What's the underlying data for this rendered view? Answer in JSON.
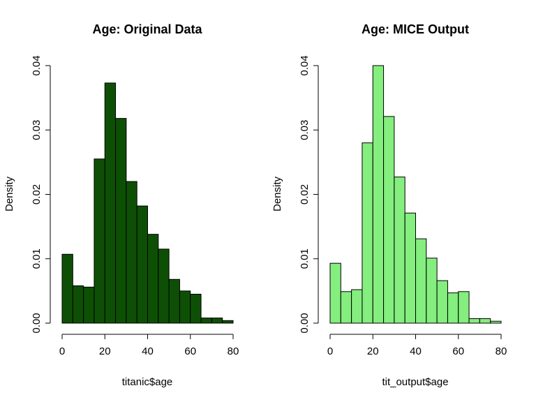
{
  "chart_data": [
    {
      "type": "bar",
      "title": "Age: Original Data",
      "xlabel": "titanic$age",
      "ylabel": "Density",
      "bar_color": "#0d5005",
      "bin_width": 5,
      "xlim": [
        0,
        80
      ],
      "ylim": [
        0,
        0.04
      ],
      "x_ticks": [
        "0",
        "20",
        "40",
        "60",
        "80"
      ],
      "y_ticks": [
        "0.00",
        "0.01",
        "0.02",
        "0.03",
        "0.04"
      ],
      "bins": [
        {
          "range": [
            0,
            5
          ],
          "value": 0.0107
        },
        {
          "range": [
            5,
            10
          ],
          "value": 0.0058
        },
        {
          "range": [
            10,
            15
          ],
          "value": 0.0056
        },
        {
          "range": [
            15,
            20
          ],
          "value": 0.0255
        },
        {
          "range": [
            20,
            25
          ],
          "value": 0.0373
        },
        {
          "range": [
            25,
            30
          ],
          "value": 0.0318
        },
        {
          "range": [
            30,
            35
          ],
          "value": 0.022
        },
        {
          "range": [
            35,
            40
          ],
          "value": 0.0182
        },
        {
          "range": [
            40,
            45
          ],
          "value": 0.0138
        },
        {
          "range": [
            45,
            50
          ],
          "value": 0.0115
        },
        {
          "range": [
            50,
            55
          ],
          "value": 0.0068
        },
        {
          "range": [
            55,
            60
          ],
          "value": 0.005
        },
        {
          "range": [
            60,
            65
          ],
          "value": 0.0045
        },
        {
          "range": [
            65,
            70
          ],
          "value": 0.0008
        },
        {
          "range": [
            70,
            75
          ],
          "value": 0.0008
        },
        {
          "range": [
            75,
            80
          ],
          "value": 0.0004
        }
      ]
    },
    {
      "type": "bar",
      "title": "Age: MICE Output",
      "xlabel": "tit_output$age",
      "ylabel": "Density",
      "bar_color": "#84ee7e",
      "bin_width": 5,
      "xlim": [
        0,
        80
      ],
      "ylim": [
        0,
        0.04
      ],
      "x_ticks": [
        "0",
        "20",
        "40",
        "60",
        "80"
      ],
      "y_ticks": [
        "0.00",
        "0.01",
        "0.02",
        "0.03",
        "0.04"
      ],
      "bins": [
        {
          "range": [
            0,
            5
          ],
          "value": 0.0093
        },
        {
          "range": [
            5,
            10
          ],
          "value": 0.0049
        },
        {
          "range": [
            10,
            15
          ],
          "value": 0.0052
        },
        {
          "range": [
            15,
            20
          ],
          "value": 0.028
        },
        {
          "range": [
            20,
            25
          ],
          "value": 0.04
        },
        {
          "range": [
            25,
            30
          ],
          "value": 0.0321
        },
        {
          "range": [
            30,
            35
          ],
          "value": 0.0227
        },
        {
          "range": [
            35,
            40
          ],
          "value": 0.0171
        },
        {
          "range": [
            40,
            45
          ],
          "value": 0.0131
        },
        {
          "range": [
            45,
            50
          ],
          "value": 0.0101
        },
        {
          "range": [
            50,
            55
          ],
          "value": 0.0066
        },
        {
          "range": [
            55,
            60
          ],
          "value": 0.0047
        },
        {
          "range": [
            60,
            65
          ],
          "value": 0.0049
        },
        {
          "range": [
            65,
            70
          ],
          "value": 0.0007
        },
        {
          "range": [
            70,
            75
          ],
          "value": 0.0007
        },
        {
          "range": [
            75,
            80
          ],
          "value": 0.0003
        }
      ]
    }
  ]
}
